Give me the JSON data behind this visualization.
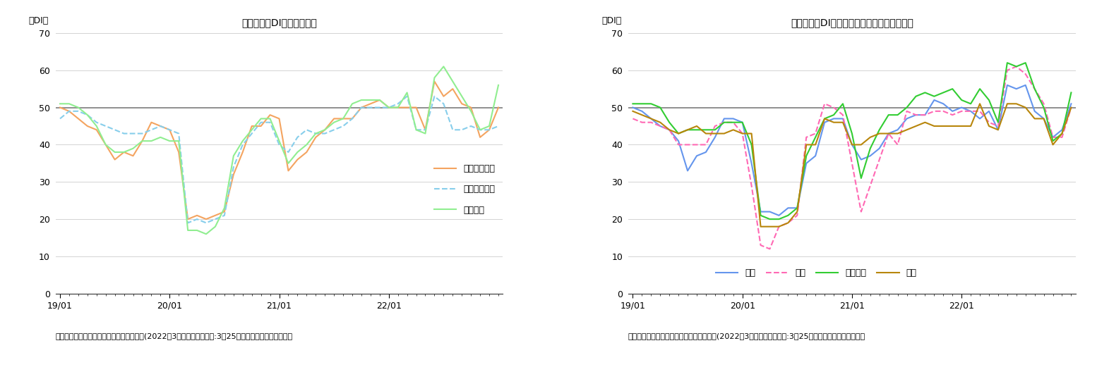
{
  "chart1": {
    "title": "先行き判断DIの内訳の推移",
    "ylabel": "（DI）",
    "xlabel_note": "（出所）内閣府「景気ウォッチャー調査」(2022年3月調査、調査期間:3月25日から月末、季節調整値）",
    "ylim": [
      0,
      70
    ],
    "yticks": [
      0,
      10,
      20,
      30,
      40,
      50,
      60,
      70
    ],
    "hline": 50,
    "series": {
      "家計動向関連": {
        "color": "#F4A460",
        "linestyle": "solid",
        "linewidth": 1.5,
        "values": [
          50,
          49,
          47,
          45,
          44,
          40,
          36,
          38,
          37,
          41,
          46,
          45,
          44,
          38,
          20,
          21,
          20,
          21,
          22,
          32,
          38,
          45,
          45,
          48,
          47,
          33,
          36,
          38,
          42,
          44,
          47,
          47,
          47,
          50,
          51,
          52,
          50,
          50,
          50,
          50,
          44,
          57,
          53,
          55,
          51,
          50,
          42,
          44,
          50
        ]
      },
      "企業動向関連": {
        "color": "#87CEEB",
        "linestyle": "dashed",
        "linewidth": 1.5,
        "values": [
          47,
          49,
          49,
          48,
          46,
          45,
          44,
          43,
          43,
          43,
          44,
          45,
          44,
          43,
          19,
          20,
          19,
          20,
          21,
          34,
          40,
          43,
          46,
          46,
          40,
          38,
          42,
          44,
          43,
          43,
          44,
          45,
          47,
          50,
          50,
          50,
          50,
          51,
          53,
          44,
          44,
          53,
          51,
          44,
          44,
          45,
          44,
          44,
          45
        ]
      },
      "雇用関連": {
        "color": "#90EE90",
        "linestyle": "solid",
        "linewidth": 1.5,
        "values": [
          51,
          51,
          50,
          48,
          45,
          40,
          38,
          38,
          39,
          41,
          41,
          42,
          41,
          41,
          17,
          17,
          16,
          18,
          23,
          37,
          41,
          44,
          47,
          47,
          41,
          35,
          38,
          40,
          43,
          44,
          46,
          47,
          51,
          52,
          52,
          52,
          50,
          50,
          54,
          44,
          43,
          58,
          61,
          57,
          53,
          49,
          44,
          45,
          56
        ]
      }
    }
  },
  "chart2": {
    "title": "先行き判断DI（家計動向関連）の内訳の推移",
    "ylabel": "（DI）",
    "xlabel_note": "（出所）内閣府「景気ウォッチャー調査」(2022年3月調査、調査期間:3月25日から月末、季節調整値）",
    "ylim": [
      0,
      70
    ],
    "yticks": [
      0,
      10,
      20,
      30,
      40,
      50,
      60,
      70
    ],
    "hline": 50,
    "series": {
      "小売": {
        "color": "#6495ED",
        "linestyle": "solid",
        "linewidth": 1.5,
        "values": [
          50,
          49,
          47,
          45,
          44,
          41,
          33,
          37,
          38,
          42,
          47,
          47,
          46,
          35,
          22,
          22,
          21,
          23,
          23,
          35,
          37,
          46,
          47,
          47,
          40,
          36,
          37,
          39,
          43,
          44,
          47,
          48,
          48,
          52,
          51,
          49,
          50,
          49,
          47,
          49,
          44,
          56,
          55,
          56,
          49,
          47,
          42,
          44,
          51
        ]
      },
      "飲食": {
        "color": "#FF69B4",
        "linestyle": "dashed",
        "linewidth": 1.5,
        "values": [
          47,
          46,
          46,
          45,
          44,
          40,
          40,
          40,
          40,
          45,
          46,
          46,
          43,
          29,
          13,
          12,
          18,
          19,
          21,
          42,
          43,
          51,
          50,
          48,
          35,
          22,
          29,
          36,
          43,
          40,
          49,
          48,
          48,
          49,
          49,
          48,
          49,
          49,
          49,
          46,
          45,
          60,
          61,
          59,
          55,
          51,
          42,
          42,
          50
        ]
      },
      "サービス": {
        "color": "#32CD32",
        "linestyle": "solid",
        "linewidth": 1.5,
        "values": [
          51,
          51,
          51,
          50,
          46,
          43,
          44,
          44,
          44,
          44,
          46,
          46,
          46,
          40,
          21,
          20,
          20,
          21,
          23,
          37,
          42,
          47,
          48,
          51,
          43,
          31,
          39,
          44,
          48,
          48,
          50,
          53,
          54,
          53,
          54,
          55,
          52,
          51,
          55,
          52,
          46,
          62,
          61,
          62,
          55,
          50,
          41,
          43,
          54
        ]
      },
      "住宅": {
        "color": "#B8860B",
        "linestyle": "solid",
        "linewidth": 1.5,
        "values": [
          49,
          48,
          47,
          46,
          44,
          43,
          44,
          45,
          43,
          43,
          43,
          44,
          43,
          43,
          18,
          18,
          18,
          19,
          22,
          40,
          40,
          47,
          46,
          46,
          40,
          40,
          42,
          43,
          43,
          43,
          44,
          45,
          46,
          45,
          45,
          45,
          45,
          45,
          51,
          45,
          44,
          51,
          51,
          50,
          47,
          47,
          40,
          43,
          50
        ]
      }
    }
  },
  "xtick_labels": [
    "19/01",
    "20/01",
    "21/01",
    "22/01"
  ],
  "xtick_positions": [
    0,
    12,
    24,
    36
  ],
  "n_points": 49,
  "background_color": "#ffffff",
  "grid_color": "#d3d3d3",
  "hline_color": "#808080"
}
